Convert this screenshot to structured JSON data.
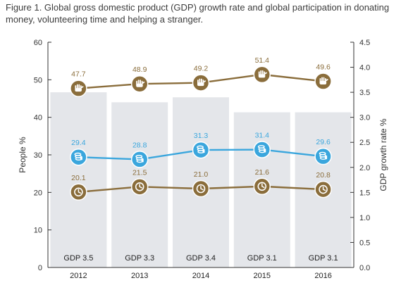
{
  "title": "Figure 1. Global gross domestic product (GDP) growth rate and global participation in donating money, volunteering time and helping a stranger.",
  "chart_data": {
    "type": "bar",
    "categories": [
      "2012",
      "2013",
      "2014",
      "2015",
      "2016"
    ],
    "ylabel": "People %",
    "ylim": [
      0,
      60
    ],
    "yticks": [
      "0",
      "10",
      "20",
      "30",
      "40",
      "50",
      "60"
    ],
    "y2label": "GDP growth rate %",
    "y2lim": [
      0,
      4.5
    ],
    "y2ticks": [
      "0.0",
      "0.5",
      "1.0",
      "1.5",
      "2.0",
      "2.5",
      "3.0",
      "3.5",
      "4.0",
      "4.5"
    ],
    "bars": {
      "axis": "right",
      "values": [
        3.5,
        3.3,
        3.4,
        3.1,
        3.1
      ],
      "labels": [
        "GDP 3.5",
        "GDP 3.3",
        "GDP 3.4",
        "GDP 3.1",
        "GDP 3.1"
      ],
      "color": "#e4e6ea"
    },
    "series": [
      {
        "type": "line",
        "icon": "helping-hand-icon",
        "color": "#8a6d3b",
        "values": [
          47.7,
          48.9,
          49.2,
          51.4,
          49.6
        ],
        "labels": [
          "47.7",
          "48.9",
          "49.2",
          "51.4",
          "49.6"
        ]
      },
      {
        "type": "line",
        "icon": "money-icon",
        "color": "#3aa6dd",
        "values": [
          29.4,
          28.8,
          31.3,
          31.4,
          29.6
        ],
        "labels": [
          "29.4",
          "28.8",
          "31.3",
          "31.4",
          "29.6"
        ]
      },
      {
        "type": "line",
        "icon": "clock-icon",
        "color": "#8a6d3b",
        "values": [
          20.1,
          21.5,
          21.0,
          21.6,
          20.8
        ],
        "labels": [
          "20.1",
          "21.5",
          "21.0",
          "21.6",
          "20.8"
        ]
      }
    ],
    "grid": false
  }
}
